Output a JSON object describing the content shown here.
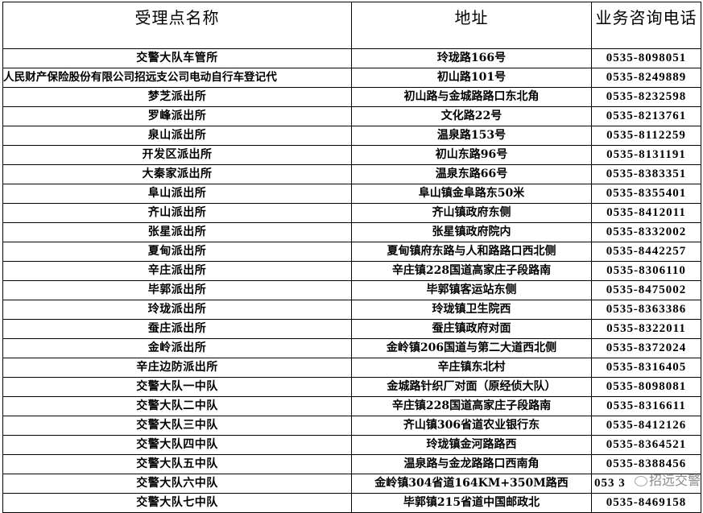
{
  "headers": [
    "受理点名称",
    "地址",
    "业务咨询电话"
  ],
  "rows": [
    {
      "name": "交警大队车管所",
      "address": "玲珑路166号",
      "phone": "0535-8098051"
    },
    {
      "name": "人民财产保险股份有限公司招远支公司电动自行车登记代",
      "address": "初山路101号",
      "phone": "0535-8249889"
    },
    {
      "name": "梦芝派出所",
      "address": "初山路与金城路路口东北角",
      "phone": "0535-8232598"
    },
    {
      "name": "罗峰派出所",
      "address": "文化路22号",
      "phone": "0535-8213761"
    },
    {
      "name": "泉山派出所",
      "address": "温泉路153号",
      "phone": "0535-8112259"
    },
    {
      "name": "开发区派出所",
      "address": "初山东路96号",
      "phone": "0535-8131191"
    },
    {
      "name": "大秦家派出所",
      "address": "温泉东路66号",
      "phone": "0535-8383351"
    },
    {
      "name": "阜山派出所",
      "address": "阜山镇金阜路东50米",
      "phone": "0535-8355401"
    },
    {
      "name": "齐山派出所",
      "address": "齐山镇政府东侧",
      "phone": "0535-8412011"
    },
    {
      "name": "张星派出所",
      "address": "张星镇政府院内",
      "phone": "0535-8332002"
    },
    {
      "name": "夏甸派出所",
      "address": "夏甸镇府东路与人和路路口西北侧",
      "phone": "0535-8442257"
    },
    {
      "name": "辛庄派出所",
      "address": "辛庄镇228国道高家庄子段路南",
      "phone": "0535-8306110"
    },
    {
      "name": "毕郭派出所",
      "address": "毕郭镇客运站东侧",
      "phone": "0535-8475002"
    },
    {
      "name": "玲珑派出所",
      "address": "玲珑镇卫生院西",
      "phone": "0535-8363386"
    },
    {
      "name": "蚕庄派出所",
      "address": "蚕庄镇政府对面",
      "phone": "0535-8322011"
    },
    {
      "name": "金岭派出所",
      "address": "金岭镇206国道与第二大道西北侧",
      "phone": "0535-8372024"
    },
    {
      "name": "辛庄边防派出所",
      "address": "辛庄镇东北村",
      "phone": "0535-8316405"
    },
    {
      "name": "交警大队一中队",
      "address": "金城路针织厂对面（原经侦大队）",
      "phone": "0535-8098081"
    },
    {
      "name": "交警大队二中队",
      "address": "辛庄镇228国道高家庄子段路南",
      "phone": "0535-8316611"
    },
    {
      "name": "交警大队三中队",
      "address": "齐山镇306省道农业银行东",
      "phone": "0535-8412126"
    },
    {
      "name": "交警大队四中队",
      "address": "玲珑镇金河路路西",
      "phone": "0535-8364521"
    },
    {
      "name": "交警大队五中队",
      "address": "温泉路与金龙路路口西南角",
      "phone": "0535-8388456"
    },
    {
      "name": "交警大队六中队",
      "address": "金岭镇304省道164KM+350M路西",
      "phone": "053 3"
    },
    {
      "name": "交警大队七中队",
      "address": "毕郭镇215省道中国邮政北",
      "phone": "0535-8469158"
    }
  ],
  "watermark": {
    "text": "招远交警",
    "icon": "wechat-icon"
  }
}
